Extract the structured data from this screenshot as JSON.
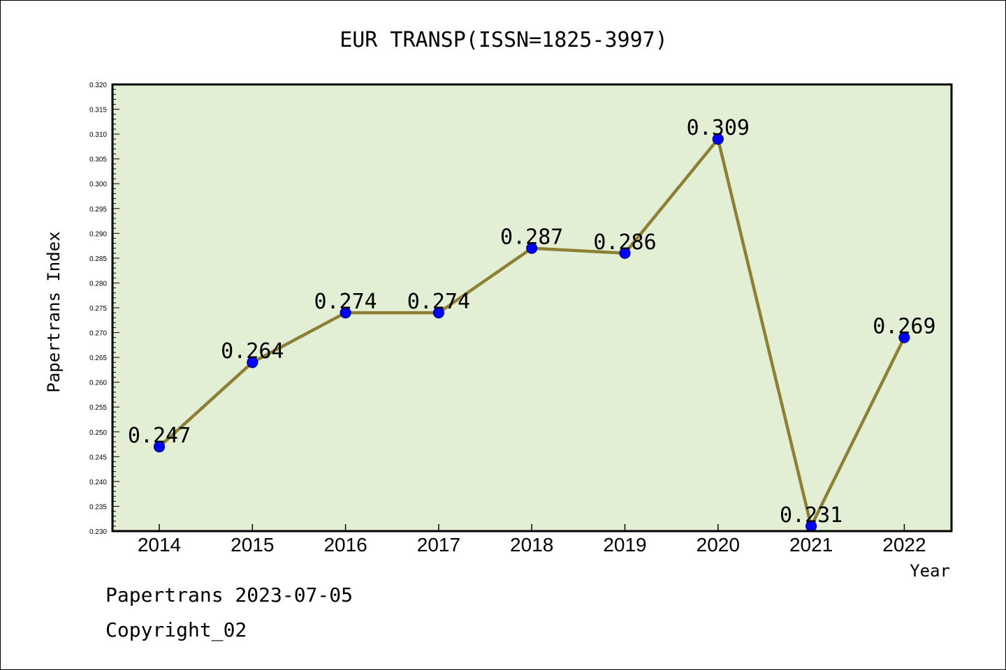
{
  "chart_data": {
    "type": "line",
    "title": "EUR TRANSP(ISSN=1825-3997)",
    "xlabel": "Year",
    "ylabel": "Papertrans Index",
    "categories": [
      "2014",
      "2015",
      "2016",
      "2017",
      "2018",
      "2019",
      "2020",
      "2021",
      "2022"
    ],
    "values": [
      0.247,
      0.264,
      0.274,
      0.274,
      0.287,
      0.286,
      0.309,
      0.231,
      0.269
    ],
    "data_labels": [
      "0.247",
      "0.264",
      "0.274",
      "0.274",
      "0.287",
      "0.286",
      "0.309",
      "0.231",
      "0.269"
    ],
    "ylim": [
      0.23,
      0.32
    ],
    "yticks": [
      "0.230",
      "0.235",
      "0.240",
      "0.245",
      "0.250",
      "0.255",
      "0.260",
      "0.265",
      "0.270",
      "0.275",
      "0.280",
      "0.285",
      "0.290",
      "0.295",
      "0.300",
      "0.305",
      "0.310",
      "0.315",
      "0.320"
    ],
    "grid": false,
    "colors": {
      "plot_background": "#e2efd5",
      "line": "#8c8035",
      "marker": "#0000ff",
      "marker_edge": "#000080"
    }
  },
  "footer": {
    "line1": "Papertrans 2023-07-05",
    "line2": "Copyright_02"
  }
}
